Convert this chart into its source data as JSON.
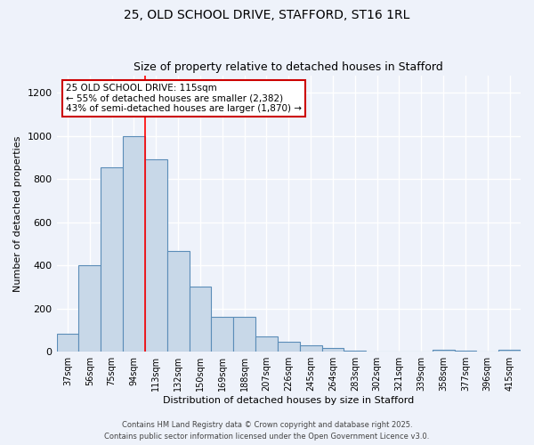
{
  "title1": "25, OLD SCHOOL DRIVE, STAFFORD, ST16 1RL",
  "title2": "Size of property relative to detached houses in Stafford",
  "xlabel": "Distribution of detached houses by size in Stafford",
  "ylabel": "Number of detached properties",
  "categories": [
    "37sqm",
    "56sqm",
    "75sqm",
    "94sqm",
    "113sqm",
    "132sqm",
    "150sqm",
    "169sqm",
    "188sqm",
    "207sqm",
    "226sqm",
    "245sqm",
    "264sqm",
    "283sqm",
    "302sqm",
    "321sqm",
    "339sqm",
    "358sqm",
    "377sqm",
    "396sqm",
    "415sqm"
  ],
  "values": [
    85,
    400,
    855,
    1000,
    890,
    465,
    300,
    160,
    160,
    70,
    45,
    28,
    18,
    5,
    2,
    2,
    2,
    10,
    5,
    2,
    10
  ],
  "bar_color": "#c8d8e8",
  "bar_edge_color": "#5b8db8",
  "red_line_index": 4,
  "ylim": [
    0,
    1280
  ],
  "yticks": [
    0,
    200,
    400,
    600,
    800,
    1000,
    1200
  ],
  "annotation_text": "25 OLD SCHOOL DRIVE: 115sqm\n← 55% of detached houses are smaller (2,382)\n43% of semi-detached houses are larger (1,870) →",
  "footer1": "Contains HM Land Registry data © Crown copyright and database right 2025.",
  "footer2": "Contains public sector information licensed under the Open Government Licence v3.0.",
  "bg_color": "#eef2fa",
  "grid_color": "#ffffff",
  "annotation_box_color": "#ffffff",
  "annotation_box_edge": "#cc0000"
}
